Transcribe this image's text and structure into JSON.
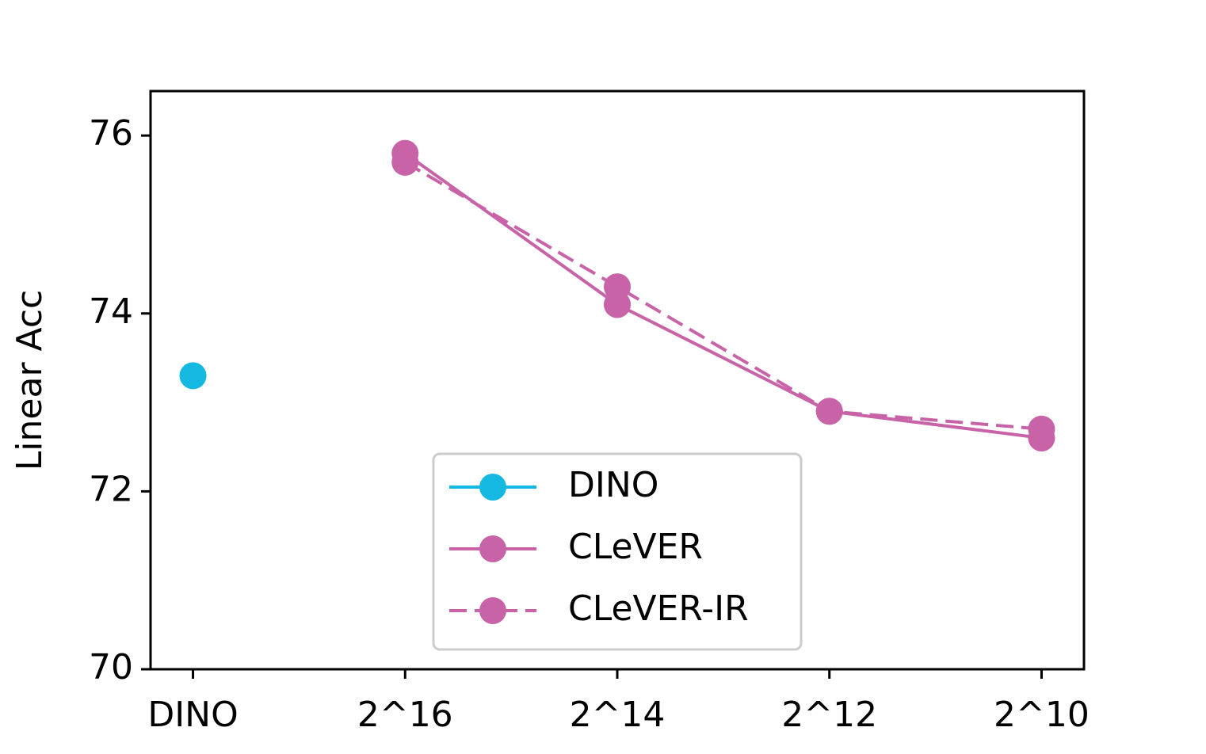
{
  "chart_data": {
    "type": "line",
    "y_label": "Linear Acc",
    "categories": [
      "DINO",
      "2^16",
      "2^14",
      "2^12",
      "2^10"
    ],
    "series": [
      {
        "name": "DINO",
        "color": "#14b8e0",
        "linestyle": "solid",
        "values": [
          73.3,
          null,
          null,
          null,
          null
        ]
      },
      {
        "name": "CLeVER",
        "color": "#c763a6",
        "linestyle": "solid",
        "values": [
          null,
          75.8,
          74.1,
          72.9,
          72.6
        ]
      },
      {
        "name": "CLeVER-IR",
        "color": "#c763a6",
        "linestyle": "dashed",
        "values": [
          null,
          75.7,
          74.3,
          72.9,
          72.7
        ]
      }
    ],
    "ylim": [
      70,
      76.5
    ],
    "yticks": [
      70,
      72,
      74,
      76
    ],
    "grid": false,
    "legend": "lower center"
  }
}
